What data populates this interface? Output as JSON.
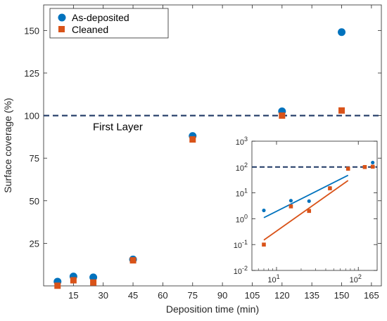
{
  "chart_data": [
    {
      "type": "scatter",
      "title": "",
      "xlabel": "Deposition time (min)",
      "ylabel": "Surface coverage (%)",
      "xlim": [
        0,
        170
      ],
      "ylim": [
        0,
        165
      ],
      "xticks": [
        15,
        30,
        45,
        60,
        75,
        90,
        105,
        120,
        135,
        150,
        165
      ],
      "yticks": [
        25,
        50,
        75,
        100,
        125,
        150
      ],
      "grid": false,
      "legend_position": "top-left",
      "series": [
        {
          "name": "As-deposited",
          "marker": "circle",
          "color": "#0072BD",
          "x": [
            7,
            15,
            25,
            45,
            75,
            120,
            150
          ],
          "y": [
            2.5,
            5.5,
            5,
            15.5,
            88,
            102.5,
            149
          ]
        },
        {
          "name": "Cleaned",
          "marker": "square",
          "color": "#D95319",
          "x": [
            7,
            15,
            25,
            45,
            75,
            120,
            150
          ],
          "y": [
            0.1,
            3.3,
            2,
            15,
            86,
            100,
            103
          ]
        }
      ],
      "reference_line": {
        "y": 100,
        "label": "First Layer",
        "style": "dashed",
        "color": "#1F3864"
      }
    },
    {
      "type": "scatter",
      "title": "",
      "xlabel": "",
      "ylabel": "",
      "x_scale": "log",
      "y_scale": "log",
      "xlim": [
        5,
        170
      ],
      "ylim": [
        0.01,
        1000
      ],
      "grid": false,
      "x_tick_labels": [
        {
          "base": "10",
          "exp": "1"
        },
        {
          "base": "10",
          "exp": "2"
        }
      ],
      "y_tick_labels": [
        {
          "base": "10",
          "exp": "3"
        },
        {
          "base": "10",
          "exp": "2"
        },
        {
          "base": "10",
          "exp": "1"
        },
        {
          "base": "10",
          "exp": "0"
        },
        {
          "base": "10",
          "exp": "-1"
        },
        {
          "base": "10",
          "exp": "-2"
        }
      ],
      "series": [
        {
          "marker": "circle",
          "color": "#0072BD",
          "x": [
            7,
            15,
            25,
            45,
            75,
            120,
            150
          ],
          "y": [
            2.1,
            5,
            4.8,
            15.5,
            88,
            102,
            149
          ],
          "fit": {
            "x": [
              7,
              75
            ],
            "y": [
              1.1,
              48
            ]
          }
        },
        {
          "marker": "square",
          "color": "#D95319",
          "x": [
            7,
            15,
            25,
            45,
            75,
            120,
            150
          ],
          "y": [
            0.1,
            3,
            2,
            15,
            86,
            100,
            103
          ],
          "fit": {
            "x": [
              7,
              75
            ],
            "y": [
              0.15,
              30
            ]
          }
        }
      ],
      "reference_line": {
        "y": 100,
        "style": "dashed",
        "color": "#1F3864"
      }
    }
  ]
}
